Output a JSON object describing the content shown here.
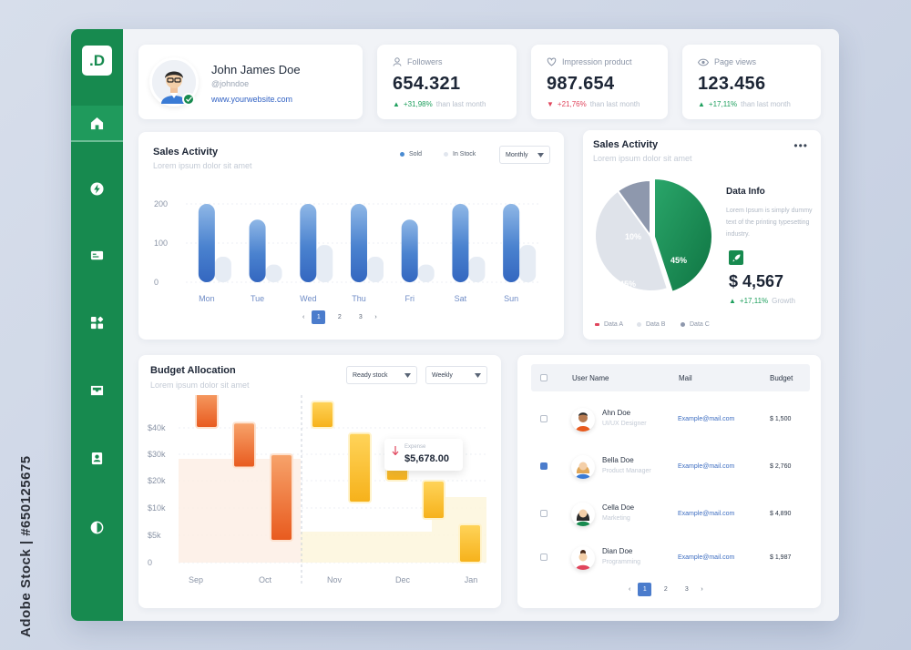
{
  "watermark": "Adobe Stock | #650125675",
  "colors": {
    "brand": "#178a4f",
    "accent": "#4b7ccc",
    "up": "#1fa05e",
    "down": "#e0455c"
  },
  "sidebar": {
    "logo": ".D",
    "items": [
      {
        "icon": "home-icon"
      },
      {
        "icon": "lightning-icon"
      },
      {
        "icon": "id-card-icon"
      },
      {
        "icon": "widgets-icon"
      },
      {
        "icon": "inbox-icon"
      },
      {
        "icon": "contact-icon"
      },
      {
        "icon": "theme-toggle-icon"
      }
    ]
  },
  "profile": {
    "name": "John James Doe",
    "handle": "@johndoe",
    "website": "www.yourwebsite.com"
  },
  "stats": [
    {
      "label": "Followers",
      "value": "654.321",
      "change": "+31,98%",
      "direction": "up",
      "suffix": "than last month",
      "icon": "user-icon"
    },
    {
      "label": "Impression product",
      "value": "987.654",
      "change": "+21,76%",
      "direction": "down",
      "suffix": "than last month",
      "icon": "heart-icon"
    },
    {
      "label": "Page views",
      "value": "123.456",
      "change": "+17,11%",
      "direction": "up",
      "suffix": "than last month",
      "icon": "eye-icon"
    }
  ],
  "sales": {
    "title": "Sales Activity",
    "subtitle": "Lorem ipsum dolor sit amet",
    "legend_sold": "Sold",
    "legend_instock": "In Stock",
    "period": "Monthly",
    "pages": [
      "1",
      "2",
      "3"
    ]
  },
  "pie": {
    "title": "Sales Activity",
    "subtitle": "Lorem ipsum dolor sit amet",
    "info_title": "Data Info",
    "info_text": "Lorem Ipsum is simply dummy text of the printing typesetting industry.",
    "amount": "$ 4,567",
    "growth_change": "+17,11%",
    "growth_label": "Growth",
    "labels": [
      "45%",
      "45%",
      "10%"
    ]
  },
  "budget": {
    "title": "Budget Allocation",
    "subtitle": "Lorem ipsum dolor sit amet",
    "filter1": "Ready stock",
    "filter2": "Weekly",
    "tooltip_label": "Expense",
    "tooltip_value": "$5,678.00"
  },
  "users": {
    "headers": {
      "name": "User Name",
      "mail": "Mail",
      "budget": "Budget"
    },
    "rows": [
      {
        "name": "Ahn Doe",
        "role": "UI/UX Designer",
        "mail": "Example@mail.com",
        "budget": "$ 1,500",
        "checked": false
      },
      {
        "name": "Bella Doe",
        "role": "Product Manager",
        "mail": "Example@mail.com",
        "budget": "$ 2,760",
        "checked": true
      },
      {
        "name": "Cella Doe",
        "role": "Marketing",
        "mail": "Example@mail.com",
        "budget": "$ 4,890",
        "checked": false
      },
      {
        "name": "Dian Doe",
        "role": "Programming",
        "mail": "Example@mail.com",
        "budget": "$ 1,987",
        "checked": false
      }
    ],
    "pages": [
      "1",
      "2",
      "3"
    ]
  },
  "chart_data": [
    {
      "type": "bar",
      "title": "Sales Activity",
      "categories": [
        "Mon",
        "Tue",
        "Wed",
        "Thu",
        "Fri",
        "Sat",
        "Sun"
      ],
      "series": [
        {
          "name": "Sold",
          "values": [
            200,
            160,
            200,
            200,
            160,
            200,
            200
          ]
        },
        {
          "name": "In Stock",
          "values": [
            65,
            45,
            95,
            65,
            45,
            65,
            95
          ]
        }
      ],
      "yticks": [
        "200",
        "100",
        "0"
      ],
      "ylim": [
        0,
        200
      ]
    },
    {
      "type": "pie",
      "title": "Sales Activity",
      "labels": [
        "Data A",
        "Data B",
        "Data C"
      ],
      "values": [
        45,
        45,
        10
      ],
      "colors": [
        "#178a4f",
        "#dfe3ea",
        "#8e98ad"
      ]
    },
    {
      "type": "bar",
      "title": "Budget Allocation",
      "x_ticks": [
        "Sep",
        "Oct",
        "Nov",
        "Dec",
        "Jan"
      ],
      "y_ticks": [
        "$40k",
        "$30k",
        "$20k",
        "$10k",
        "$5k",
        "0"
      ],
      "ylim": [
        0,
        50000
      ],
      "series": [
        {
          "name": "Orange",
          "ranges": [
            [
              40000,
              55000
            ],
            [
              25000,
              42000
            ],
            [
              4000,
              30000
            ]
          ]
        },
        {
          "name": "Yellow",
          "ranges": [
            [
              40000,
              50000
            ],
            [
              12000,
              38000
            ],
            [
              20000,
              30000
            ],
            [
              8000,
              20000
            ],
            [
              0,
              7000
            ]
          ]
        }
      ]
    }
  ]
}
